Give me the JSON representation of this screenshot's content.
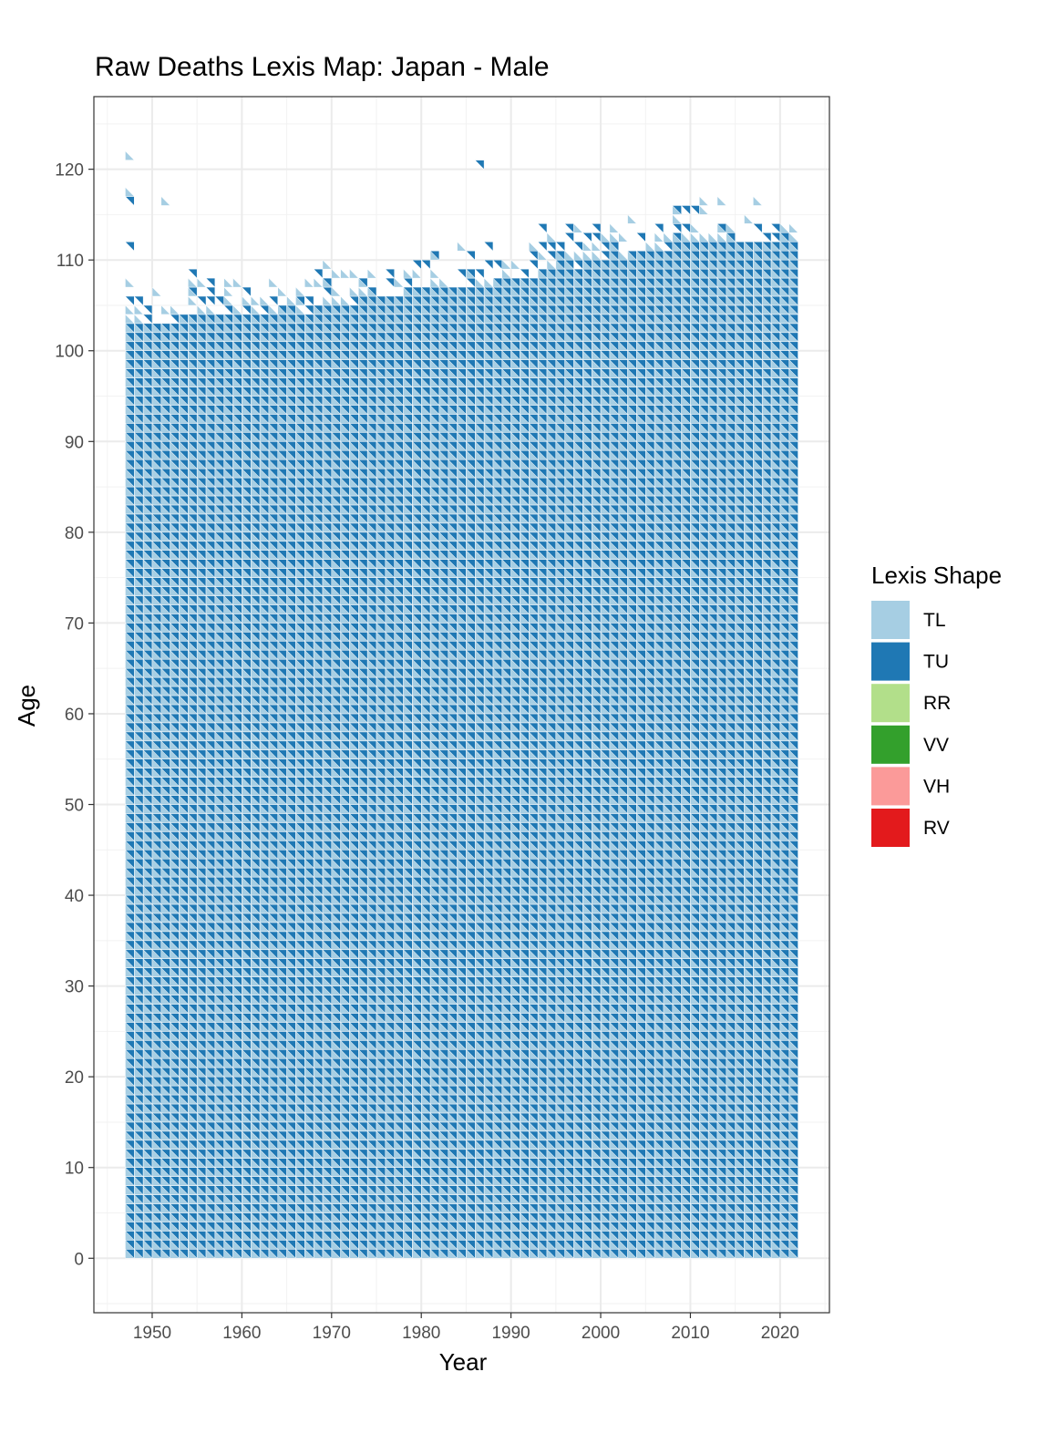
{
  "chart_data": {
    "type": "heatmap",
    "title": "Raw Deaths Lexis Map: Japan - Male",
    "xlabel": "Year",
    "ylabel": "Age",
    "xlim": [
      1943.5,
      2025.5
    ],
    "ylim": [
      -6,
      128
    ],
    "x_ticks": [
      1950,
      1960,
      1970,
      1980,
      1990,
      2000,
      2010,
      2020
    ],
    "y_ticks": [
      0,
      10,
      20,
      30,
      40,
      50,
      60,
      70,
      80,
      90,
      100,
      110,
      120
    ],
    "x_range": [
      1947,
      2021
    ],
    "age_range": [
      0,
      110
    ],
    "grid": true,
    "legend": {
      "title": "Lexis Shape",
      "placement": "right",
      "entries": [
        {
          "label": "TL",
          "color": "#A6CEE3"
        },
        {
          "label": "TU",
          "color": "#1F78B4"
        },
        {
          "label": "RR",
          "color": "#B2DF8A"
        },
        {
          "label": "VV",
          "color": "#33A02C"
        },
        {
          "label": "VH",
          "color": "#FB9A99"
        },
        {
          "label": "RV",
          "color": "#E31A1C"
        }
      ]
    },
    "max_full_age_by_year": [
      {
        "year": 1947,
        "age": 102
      },
      {
        "year": 1950,
        "age": 102
      },
      {
        "year": 1955,
        "age": 103
      },
      {
        "year": 1960,
        "age": 103
      },
      {
        "year": 1965,
        "age": 103
      },
      {
        "year": 1970,
        "age": 104
      },
      {
        "year": 1975,
        "age": 105
      },
      {
        "year": 1980,
        "age": 106
      },
      {
        "year": 1985,
        "age": 106
      },
      {
        "year": 1990,
        "age": 107
      },
      {
        "year": 1995,
        "age": 108
      },
      {
        "year": 2000,
        "age": 109
      },
      {
        "year": 2005,
        "age": 110
      },
      {
        "year": 2010,
        "age": 111
      },
      {
        "year": 2015,
        "age": 111
      },
      {
        "year": 2021,
        "age": 111
      }
    ],
    "extreme_cells": [
      {
        "year": 1947,
        "age": 121,
        "shape": "TL"
      },
      {
        "year": 1947,
        "age": 116,
        "shape": "TU"
      },
      {
        "year": 1947,
        "age": 117,
        "shape": "TL"
      },
      {
        "year": 1951,
        "age": 116,
        "shape": "TL"
      },
      {
        "year": 1947,
        "age": 111,
        "shape": "TU"
      },
      {
        "year": 1986,
        "age": 120,
        "shape": "TU"
      },
      {
        "year": 1987,
        "age": 111,
        "shape": "TU"
      },
      {
        "year": 2003,
        "age": 114,
        "shape": "TL"
      },
      {
        "year": 2009,
        "age": 113,
        "shape": "TU"
      },
      {
        "year": 2013,
        "age": 116,
        "shape": "TL"
      },
      {
        "year": 2019,
        "age": 113,
        "shape": "TU"
      },
      {
        "year": 2020,
        "age": 112,
        "shape": "TU"
      }
    ]
  }
}
